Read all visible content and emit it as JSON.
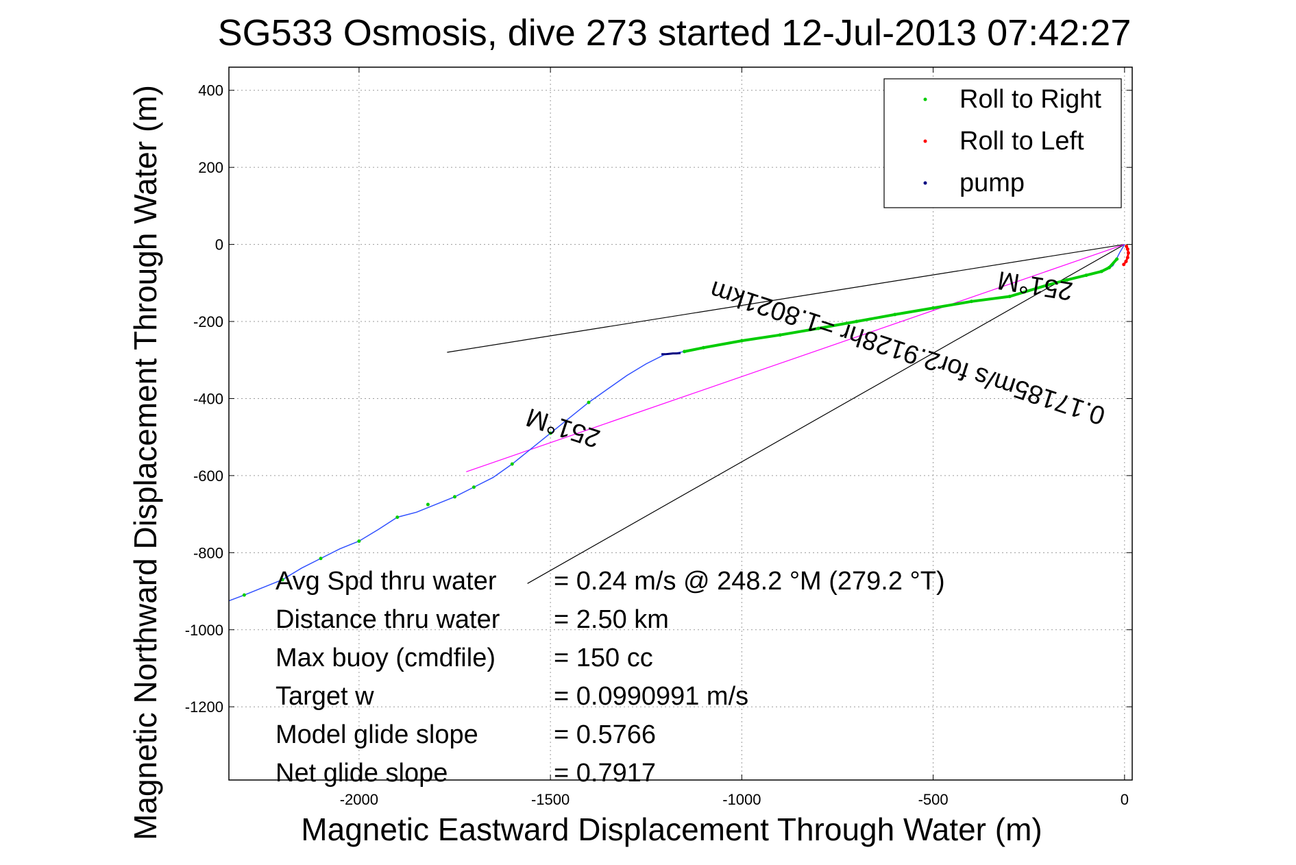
{
  "chart_data": {
    "type": "line",
    "title": "SG533 Osmosis, dive 273 started 12-Jul-2013 07:42:27",
    "xlabel": "Magnetic Eastward Displacement Through Water (m)",
    "ylabel": "Magnetic Northward Displacement Through Water (m)",
    "xlim": [
      -2340,
      20
    ],
    "ylim": [
      -1390,
      460
    ],
    "x_ticks": [
      -2000,
      -1500,
      -1000,
      -500,
      0
    ],
    "y_ticks": [
      400,
      200,
      0,
      -200,
      -400,
      -600,
      -800,
      -1000,
      -1200
    ],
    "grid": true,
    "legend_position": "top-right",
    "legend": [
      {
        "label": "Roll to Right",
        "color": "#00cc00"
      },
      {
        "label": "Roll to Left",
        "color": "#ff0000"
      },
      {
        "label": "pump",
        "color": "#000080"
      }
    ],
    "series": [
      {
        "name": "track",
        "color": "#3050ff",
        "x": [
          0,
          -12,
          -30,
          -45,
          -60,
          -100,
          -150,
          -200,
          -300,
          -400,
          -500,
          -600,
          -700,
          -800,
          -900,
          -1000,
          -1100,
          -1150,
          -1180,
          -1200,
          -1250,
          -1300,
          -1350,
          -1400,
          -1450,
          -1500,
          -1550,
          -1600,
          -1650,
          -1700,
          -1750,
          -1800,
          -1850,
          -1900,
          -1950,
          -2000,
          -2050,
          -2100,
          -2150,
          -2200,
          -2250,
          -2300,
          -2340
        ],
        "y": [
          0,
          -20,
          -55,
          -65,
          -70,
          -80,
          -92,
          -105,
          -135,
          -148,
          -165,
          -182,
          -200,
          -218,
          -235,
          -250,
          -268,
          -278,
          -283,
          -285,
          -310,
          -340,
          -375,
          -410,
          -450,
          -490,
          -530,
          -570,
          -605,
          -630,
          -655,
          -675,
          -695,
          -708,
          -740,
          -770,
          -790,
          -815,
          -840,
          -870,
          -890,
          -910,
          -925
        ]
      },
      {
        "name": "Roll to Right",
        "color": "#00cc00",
        "x": [
          -20,
          -40,
          -60,
          -100,
          -150,
          -200,
          -300,
          -400,
          -500,
          -600,
          -700,
          -800,
          -900,
          -1000,
          -1100,
          -1150,
          -1400,
          -1500,
          -1600,
          -1700,
          -1750,
          -1820,
          -1900,
          -2000,
          -2100,
          -2200,
          -2300
        ],
        "y": [
          -38,
          -60,
          -70,
          -80,
          -92,
          -105,
          -135,
          -148,
          -165,
          -182,
          -200,
          -218,
          -235,
          -250,
          -268,
          -278,
          -410,
          -490,
          -570,
          -630,
          -655,
          -675,
          -708,
          -770,
          -815,
          -870,
          -910
        ]
      },
      {
        "name": "Roll to Left",
        "color": "#ff0000",
        "x": [
          5,
          8,
          10,
          8,
          4,
          -2
        ],
        "y": [
          -5,
          -12,
          -22,
          -34,
          -44,
          -52
        ]
      },
      {
        "name": "pump",
        "color": "#000080",
        "x": [
          -1160,
          -1170,
          -1180,
          -1190,
          -1200,
          -1210
        ],
        "y": [
          -282,
          -283,
          -283,
          -284,
          -285,
          -285
        ]
      }
    ],
    "reference_lines": [
      {
        "x": [
          0,
          -1770
        ],
        "y": [
          0,
          -280
        ],
        "color": "#000000"
      },
      {
        "x": [
          0,
          -1560
        ],
        "y": [
          0,
          -880
        ],
        "color": "#000000"
      },
      {
        "x": [
          0,
          -1720
        ],
        "y": [
          0,
          -590
        ],
        "color": "#ff00ff"
      }
    ],
    "annotations": [
      {
        "text": "251°M",
        "x": -230,
        "y": -85,
        "angle": 189
      },
      {
        "text": "0.17185m/s for2.9128hr =1.8021km",
        "x": -560,
        "y": -260,
        "angle": 198
      },
      {
        "text": "251°M",
        "x": -1460,
        "y": -455,
        "angle": 198
      }
    ],
    "stats": [
      {
        "label": "Avg Spd thru water",
        "value": "=  0.24 m/s @ 248.2 °M (279.2 °T)"
      },
      {
        "label": "Distance thru water",
        "value": "=  2.50 km"
      },
      {
        "label": "Max buoy (cmdfile)",
        "value": "= 150 cc"
      },
      {
        "label": "Target w",
        "value": "= 0.0990991 m/s"
      },
      {
        "label": "Model glide slope",
        "value": "= 0.5766"
      },
      {
        "label": "Net glide slope",
        "value": "= 0.7917"
      }
    ]
  }
}
